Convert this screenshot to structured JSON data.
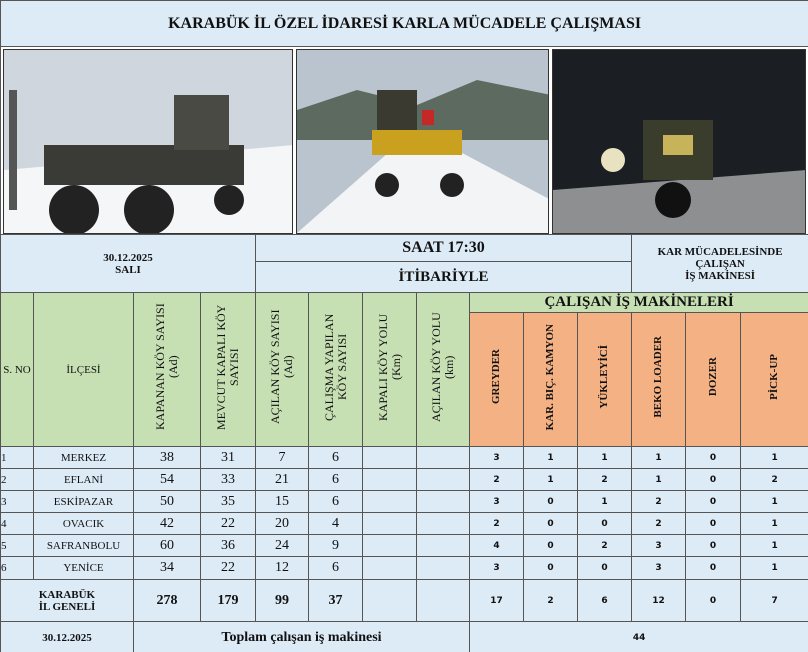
{
  "header": {
    "title": "KARABÜK İL ÖZEL İDARESİ KARLA MÜCADELE ÇALIŞMASI"
  },
  "info": {
    "date": "30.12.2025",
    "day": "SALI",
    "time": "SAAT 17:30",
    "as_of": "İTİBARİYLE",
    "machines_note": [
      "KAR MÜCADELESİNDE",
      "ÇALIŞAN",
      "İŞ MAKİNESİ"
    ]
  },
  "table": {
    "columns": [
      "S. NO",
      "İLÇESİ",
      "KAPANAN KÖY SAYISI (Ad)",
      "MEVCUT KAPALI KÖY SAYISI",
      "AÇILAN KÖY SAYISI (Ad)",
      "ÇALIŞMA YAPILAN KÖY SAYISI",
      "KAPALI KÖY YOLU (Km)",
      "AÇILAN KÖY YOLU (km)"
    ],
    "machines_title": "ÇALIŞAN İŞ MAKİNELERİ",
    "machine_columns": [
      "GREYDER",
      "KAR. BIÇ. KAMYON",
      "YÜKLEYİCİ",
      "BEKO LOADER",
      "DOZER",
      "PİCK-UP"
    ],
    "rows": [
      {
        "no": 1,
        "district": "MERKEZ",
        "counts": [
          38,
          31,
          7,
          6
        ],
        "machines": [
          3,
          1,
          1,
          1,
          0,
          1
        ]
      },
      {
        "no": 2,
        "district": "EFLANİ",
        "counts": [
          54,
          33,
          21,
          6
        ],
        "machines": [
          2,
          1,
          2,
          1,
          0,
          2
        ]
      },
      {
        "no": 3,
        "district": "ESKİPAZAR",
        "counts": [
          50,
          35,
          15,
          6
        ],
        "machines": [
          3,
          0,
          1,
          2,
          0,
          1
        ]
      },
      {
        "no": 4,
        "district": "OVACIK",
        "counts": [
          42,
          22,
          20,
          4
        ],
        "machines": [
          2,
          0,
          0,
          2,
          0,
          1
        ]
      },
      {
        "no": 5,
        "district": "SAFRANBOLU",
        "counts": [
          60,
          36,
          24,
          9
        ],
        "machines": [
          4,
          0,
          2,
          3,
          0,
          1
        ]
      },
      {
        "no": 6,
        "district": "YENİCE",
        "counts": [
          34,
          22,
          12,
          6
        ],
        "machines": [
          3,
          0,
          0,
          3,
          0,
          1
        ]
      }
    ],
    "total": {
      "label": [
        "KARABÜK",
        "İL GENELİ"
      ],
      "counts": [
        278,
        179,
        99,
        37
      ],
      "machines": [
        17,
        2,
        6,
        12,
        0,
        7
      ]
    }
  },
  "footer": {
    "date": "30.12.2025",
    "label": "Toplam çalışan iş makinesi",
    "value": 44
  }
}
